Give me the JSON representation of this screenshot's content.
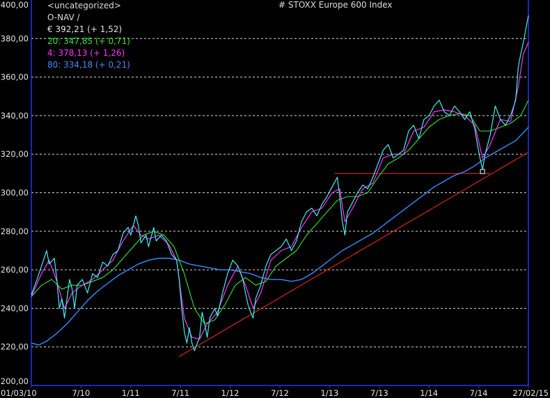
{
  "header": {
    "category": "<uncategorized>",
    "nav": "O-NAV /",
    "index_title": "# STOXX Europe 600 Index"
  },
  "legend": [
    {
      "id": "price",
      "text": "€ 392,21 (+ 1,52)",
      "color": "#e6e6e6"
    },
    {
      "id": "ma20",
      "text": "20: 347,85 (+ 0,71)",
      "color": "#32e632"
    },
    {
      "id": "ma4",
      "text": "4: 378,13 (+ 1,26)",
      "color": "#ff33ff"
    },
    {
      "id": "ma80",
      "text": "80: 334,18 (+ 0,21)",
      "color": "#3c8cff"
    }
  ],
  "chart_data": {
    "type": "line",
    "ylim": [
      200,
      400
    ],
    "y_ticks": [
      "200,00",
      "220,00",
      "240,00",
      "260,00",
      "280,00",
      "300,00",
      "320,00",
      "340,00",
      "360,00",
      "380,00",
      "400,00"
    ],
    "x_ticks": [
      "01/03/10",
      "7/10",
      "1/11",
      "7/11",
      "1/12",
      "7/12",
      "1/13",
      "7/13",
      "1/14",
      "7/14",
      "27/02/15"
    ],
    "colors": {
      "price": "#3ff0f0",
      "ma4": "#ff33ff",
      "ma20": "#32e632",
      "ma80": "#3c8cff",
      "trend": "#e8231e",
      "grid": "#d9d9d9",
      "axis": "#2233ff"
    },
    "series": [
      {
        "key": "price",
        "values": [
          [
            0,
            247
          ],
          [
            2,
            254
          ],
          [
            4,
            262
          ],
          [
            6,
            270
          ],
          [
            7,
            263
          ],
          [
            9,
            266
          ],
          [
            10,
            255
          ],
          [
            11,
            240
          ],
          [
            12,
            245
          ],
          [
            13,
            235
          ],
          [
            15,
            255
          ],
          [
            16,
            250
          ],
          [
            17,
            240
          ],
          [
            18,
            252
          ],
          [
            20,
            255
          ],
          [
            22,
            248
          ],
          [
            24,
            258
          ],
          [
            26,
            256
          ],
          [
            28,
            264
          ],
          [
            30,
            262
          ],
          [
            32,
            268
          ],
          [
            34,
            270
          ],
          [
            36,
            279
          ],
          [
            38,
            282
          ],
          [
            39,
            278
          ],
          [
            41,
            288
          ],
          [
            42,
            283
          ],
          [
            43,
            274
          ],
          [
            45,
            278
          ],
          [
            46,
            272
          ],
          [
            48,
            282
          ],
          [
            49,
            275
          ],
          [
            51,
            278
          ],
          [
            53,
            275
          ],
          [
            55,
            268
          ],
          [
            57,
            265
          ],
          [
            58,
            255
          ],
          [
            59,
            240
          ],
          [
            60,
            228
          ],
          [
            61,
            222
          ],
          [
            62,
            230
          ],
          [
            63,
            222
          ],
          [
            64,
            218
          ],
          [
            66,
            225
          ],
          [
            67,
            238
          ],
          [
            68,
            232
          ],
          [
            69,
            225
          ],
          [
            70,
            235
          ],
          [
            72,
            240
          ],
          [
            73,
            236
          ],
          [
            75,
            248
          ],
          [
            77,
            258
          ],
          [
            79,
            265
          ],
          [
            81,
            262
          ],
          [
            83,
            255
          ],
          [
            84,
            248
          ],
          [
            85,
            242
          ],
          [
            86,
            238
          ],
          [
            87,
            235
          ],
          [
            88,
            245
          ],
          [
            90,
            252
          ],
          [
            92,
            262
          ],
          [
            94,
            268
          ],
          [
            96,
            270
          ],
          [
            98,
            272
          ],
          [
            100,
            276
          ],
          [
            102,
            270
          ],
          [
            104,
            275
          ],
          [
            106,
            285
          ],
          [
            108,
            290
          ],
          [
            110,
            292
          ],
          [
            112,
            288
          ],
          [
            114,
            294
          ],
          [
            116,
            298
          ],
          [
            118,
            303
          ],
          [
            120,
            308
          ],
          [
            121,
            298
          ],
          [
            122,
            285
          ],
          [
            123,
            278
          ],
          [
            124,
            290
          ],
          [
            126,
            295
          ],
          [
            128,
            300
          ],
          [
            130,
            304
          ],
          [
            132,
            302
          ],
          [
            134,
            308
          ],
          [
            136,
            315
          ],
          [
            138,
            322
          ],
          [
            140,
            325
          ],
          [
            142,
            318
          ],
          [
            144,
            320
          ],
          [
            146,
            322
          ],
          [
            148,
            332
          ],
          [
            150,
            335
          ],
          [
            152,
            328
          ],
          [
            154,
            338
          ],
          [
            156,
            340
          ],
          [
            158,
            345
          ],
          [
            160,
            348
          ],
          [
            162,
            342
          ],
          [
            164,
            340
          ],
          [
            166,
            345
          ],
          [
            168,
            342
          ],
          [
            170,
            338
          ],
          [
            172,
            342
          ],
          [
            174,
            333
          ],
          [
            175,
            325
          ],
          [
            176,
            318
          ],
          [
            177,
            312
          ],
          [
            178,
            320
          ],
          [
            180,
            330
          ],
          [
            182,
            345
          ],
          [
            184,
            338
          ],
          [
            186,
            335
          ],
          [
            188,
            340
          ],
          [
            190,
            348
          ],
          [
            191,
            365
          ],
          [
            192,
            372
          ],
          [
            193,
            378
          ],
          [
            194,
            385
          ],
          [
            195,
            392
          ]
        ]
      },
      {
        "key": "ma4",
        "values": [
          [
            0,
            246
          ],
          [
            4,
            258
          ],
          [
            7,
            265
          ],
          [
            10,
            254
          ],
          [
            13,
            240
          ],
          [
            16,
            248
          ],
          [
            20,
            252
          ],
          [
            24,
            255
          ],
          [
            28,
            260
          ],
          [
            32,
            265
          ],
          [
            36,
            275
          ],
          [
            40,
            283
          ],
          [
            43,
            278
          ],
          [
            46,
            276
          ],
          [
            50,
            278
          ],
          [
            54,
            273
          ],
          [
            57,
            265
          ],
          [
            60,
            235
          ],
          [
            63,
            225
          ],
          [
            66,
            224
          ],
          [
            69,
            232
          ],
          [
            73,
            238
          ],
          [
            77,
            252
          ],
          [
            81,
            262
          ],
          [
            84,
            252
          ],
          [
            87,
            240
          ],
          [
            90,
            248
          ],
          [
            94,
            265
          ],
          [
            98,
            270
          ],
          [
            102,
            272
          ],
          [
            106,
            282
          ],
          [
            110,
            290
          ],
          [
            114,
            292
          ],
          [
            118,
            300
          ],
          [
            121,
            302
          ],
          [
            123,
            285
          ],
          [
            126,
            292
          ],
          [
            130,
            302
          ],
          [
            134,
            305
          ],
          [
            138,
            318
          ],
          [
            142,
            320
          ],
          [
            146,
            320
          ],
          [
            150,
            332
          ],
          [
            154,
            334
          ],
          [
            158,
            342
          ],
          [
            162,
            343
          ],
          [
            166,
            342
          ],
          [
            170,
            340
          ],
          [
            174,
            335
          ],
          [
            177,
            318
          ],
          [
            180,
            325
          ],
          [
            184,
            338
          ],
          [
            188,
            337
          ],
          [
            191,
            355
          ],
          [
            193,
            372
          ],
          [
            195,
            378
          ]
        ]
      },
      {
        "key": "ma20",
        "values": [
          [
            0,
            246
          ],
          [
            4,
            252
          ],
          [
            8,
            255
          ],
          [
            12,
            250
          ],
          [
            16,
            252
          ],
          [
            20,
            252
          ],
          [
            24,
            254
          ],
          [
            28,
            256
          ],
          [
            32,
            260
          ],
          [
            36,
            266
          ],
          [
            40,
            272
          ],
          [
            44,
            278
          ],
          [
            48,
            280
          ],
          [
            52,
            278
          ],
          [
            56,
            272
          ],
          [
            60,
            258
          ],
          [
            64,
            240
          ],
          [
            68,
            232
          ],
          [
            72,
            234
          ],
          [
            76,
            242
          ],
          [
            80,
            252
          ],
          [
            84,
            256
          ],
          [
            88,
            252
          ],
          [
            92,
            254
          ],
          [
            96,
            262
          ],
          [
            100,
            266
          ],
          [
            104,
            270
          ],
          [
            108,
            278
          ],
          [
            112,
            284
          ],
          [
            116,
            290
          ],
          [
            120,
            296
          ],
          [
            124,
            298
          ],
          [
            128,
            298
          ],
          [
            132,
            300
          ],
          [
            136,
            308
          ],
          [
            140,
            315
          ],
          [
            144,
            318
          ],
          [
            148,
            322
          ],
          [
            152,
            328
          ],
          [
            156,
            334
          ],
          [
            160,
            338
          ],
          [
            164,
            340
          ],
          [
            168,
            341
          ],
          [
            172,
            340
          ],
          [
            176,
            332
          ],
          [
            180,
            332
          ],
          [
            184,
            334
          ],
          [
            188,
            336
          ],
          [
            192,
            340
          ],
          [
            195,
            348
          ]
        ]
      },
      {
        "key": "ma80",
        "values": [
          [
            0,
            222
          ],
          [
            3,
            221
          ],
          [
            6,
            223
          ],
          [
            10,
            227
          ],
          [
            14,
            232
          ],
          [
            18,
            238
          ],
          [
            22,
            244
          ],
          [
            26,
            249
          ],
          [
            30,
            253
          ],
          [
            34,
            257
          ],
          [
            38,
            260
          ],
          [
            42,
            263
          ],
          [
            46,
            265
          ],
          [
            50,
            266
          ],
          [
            54,
            266
          ],
          [
            58,
            265
          ],
          [
            62,
            263
          ],
          [
            66,
            262
          ],
          [
            70,
            261
          ],
          [
            74,
            260
          ],
          [
            78,
            260
          ],
          [
            82,
            259
          ],
          [
            86,
            258
          ],
          [
            90,
            256
          ],
          [
            94,
            255
          ],
          [
            98,
            255
          ],
          [
            102,
            254
          ],
          [
            106,
            255
          ],
          [
            110,
            258
          ],
          [
            114,
            262
          ],
          [
            118,
            266
          ],
          [
            122,
            270
          ],
          [
            126,
            273
          ],
          [
            130,
            276
          ],
          [
            134,
            279
          ],
          [
            138,
            283
          ],
          [
            142,
            287
          ],
          [
            146,
            291
          ],
          [
            150,
            295
          ],
          [
            154,
            299
          ],
          [
            158,
            303
          ],
          [
            162,
            306
          ],
          [
            166,
            309
          ],
          [
            170,
            311
          ],
          [
            174,
            314
          ],
          [
            178,
            318
          ],
          [
            182,
            321
          ],
          [
            186,
            324
          ],
          [
            190,
            327
          ],
          [
            195,
            334
          ]
        ]
      },
      {
        "key": "trend",
        "values": [
          [
            58,
            215
          ],
          [
            195,
            321
          ]
        ]
      },
      {
        "key": "resistance",
        "values": [
          [
            119,
            310
          ],
          [
            180,
            310
          ]
        ]
      }
    ],
    "marker": {
      "x": 177,
      "y": 311
    },
    "x_max": 195
  }
}
